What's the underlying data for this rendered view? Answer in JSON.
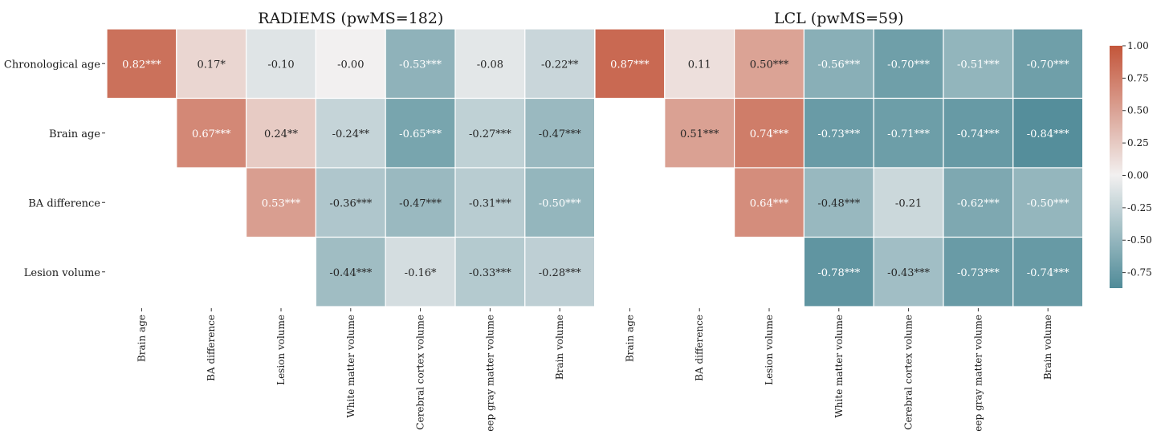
{
  "chart_data": [
    {
      "type": "heatmap",
      "title": "RADIEMS (pwMS=182)",
      "rows": [
        "Chronological age",
        "Brain age",
        "BA difference",
        "Lesion volume"
      ],
      "columns": [
        "Brain age",
        "BA difference",
        "Lesion volume",
        "White matter volume",
        "Cerebral cortex volume",
        "Deep gray matter volume",
        "Brain volume"
      ],
      "values": [
        [
          0.82,
          0.17,
          -0.1,
          -0.0,
          -0.53,
          -0.08,
          -0.22
        ],
        [
          null,
          0.67,
          0.24,
          -0.24,
          -0.65,
          -0.27,
          -0.47
        ],
        [
          null,
          null,
          0.53,
          -0.36,
          -0.47,
          -0.31,
          -0.5
        ],
        [
          null,
          null,
          null,
          -0.44,
          -0.16,
          -0.33,
          -0.28
        ]
      ],
      "annotations": [
        [
          "0.82***",
          "0.17*",
          "-0.10",
          "-0.00",
          "-0.53***",
          "-0.08",
          "-0.22**"
        ],
        [
          null,
          "0.67***",
          "0.24**",
          "-0.24**",
          "-0.65***",
          "-0.27***",
          "-0.47***"
        ],
        [
          null,
          null,
          "0.53***",
          "-0.36***",
          "-0.47***",
          "-0.31***",
          "-0.50***"
        ],
        [
          null,
          null,
          null,
          "-0.44***",
          "-0.16*",
          "-0.33***",
          "-0.28***"
        ]
      ]
    },
    {
      "type": "heatmap",
      "title": "LCL (pwMS=59)",
      "rows": [
        "Chronological age",
        "Brain age",
        "BA difference",
        "Lesion volume"
      ],
      "columns": [
        "Brain age",
        "BA difference",
        "Lesion volume",
        "White matter volume",
        "Cerebral cortex volume",
        "Deep gray matter volume",
        "Brain volume"
      ],
      "values": [
        [
          0.87,
          0.11,
          0.5,
          -0.56,
          -0.7,
          -0.51,
          -0.7
        ],
        [
          null,
          0.51,
          0.74,
          -0.73,
          -0.71,
          -0.74,
          -0.84
        ],
        [
          null,
          null,
          0.64,
          -0.48,
          -0.21,
          -0.62,
          -0.5
        ],
        [
          null,
          null,
          null,
          -0.78,
          -0.43,
          -0.73,
          -0.74
        ]
      ],
      "annotations": [
        [
          "0.87***",
          "0.11",
          "0.50***",
          "-0.56***",
          "-0.70***",
          "-0.51***",
          "-0.70***"
        ],
        [
          null,
          "0.51***",
          "0.74***",
          "-0.73***",
          "-0.71***",
          "-0.74***",
          "-0.84***"
        ],
        [
          null,
          null,
          "0.64***",
          "-0.48***",
          "-0.21",
          "-0.62***",
          "-0.50***"
        ],
        [
          null,
          null,
          null,
          "-0.78***",
          "-0.43***",
          "-0.73***",
          "-0.74***"
        ]
      ]
    }
  ],
  "colorbar": {
    "ticks": [
      "1.00",
      "0.75",
      "0.50",
      "0.25",
      "0.00",
      "-0.25",
      "-0.50",
      "-0.75"
    ],
    "tick_values": [
      1.0,
      0.75,
      0.5,
      0.25,
      0.0,
      -0.25,
      -0.5,
      -0.75
    ],
    "range": [
      -0.87,
      1.0
    ],
    "colors": {
      "positive": "#c3553a",
      "neutral": "#f2f0f0",
      "negative": "#4f8b98"
    }
  }
}
